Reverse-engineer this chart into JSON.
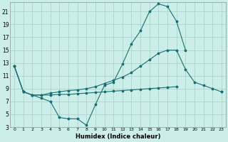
{
  "xlabel": "Humidex (Indice chaleur)",
  "xlim": [
    -0.5,
    23.5
  ],
  "ylim": [
    3,
    22.5
  ],
  "yticks": [
    3,
    5,
    7,
    9,
    11,
    13,
    15,
    17,
    19,
    21
  ],
  "xticks": [
    0,
    1,
    2,
    3,
    4,
    5,
    6,
    7,
    8,
    9,
    10,
    11,
    12,
    13,
    14,
    15,
    16,
    17,
    18,
    19,
    20,
    21,
    22,
    23
  ],
  "xtick_labels": [
    "0",
    "1",
    "2",
    "3",
    "4",
    "5",
    "6",
    "7",
    "8",
    "9",
    "10",
    "11",
    "12",
    "13",
    "14",
    "15",
    "16",
    "17",
    "18",
    "19",
    "20",
    "21",
    "22",
    "23"
  ],
  "bg_color": "#cceee8",
  "grid_color": "#aad4ce",
  "line_color": "#1a7070",
  "line1": [
    12.5,
    8.5,
    8.0,
    7.5,
    7.0,
    4.5,
    4.3,
    4.3,
    3.3,
    6.5,
    9.5,
    10.0,
    12.8,
    16.0,
    18.0,
    21.0,
    22.2,
    21.8,
    19.5,
    15.0,
    null,
    null,
    null,
    null
  ],
  "line2": [
    12.5,
    8.5,
    8.0,
    8.0,
    8.3,
    8.5,
    8.7,
    8.8,
    9.0,
    9.3,
    9.8,
    10.3,
    10.8,
    11.5,
    12.5,
    13.5,
    14.5,
    15.0,
    15.0,
    12.0,
    10.0,
    9.5,
    9.0,
    8.5
  ],
  "line3": [
    12.5,
    8.5,
    8.0,
    8.0,
    8.0,
    8.1,
    8.1,
    8.2,
    8.3,
    8.4,
    8.5,
    8.6,
    8.7,
    8.8,
    8.9,
    9.0,
    9.1,
    9.2,
    9.3,
    null,
    null,
    null,
    null,
    8.5
  ]
}
